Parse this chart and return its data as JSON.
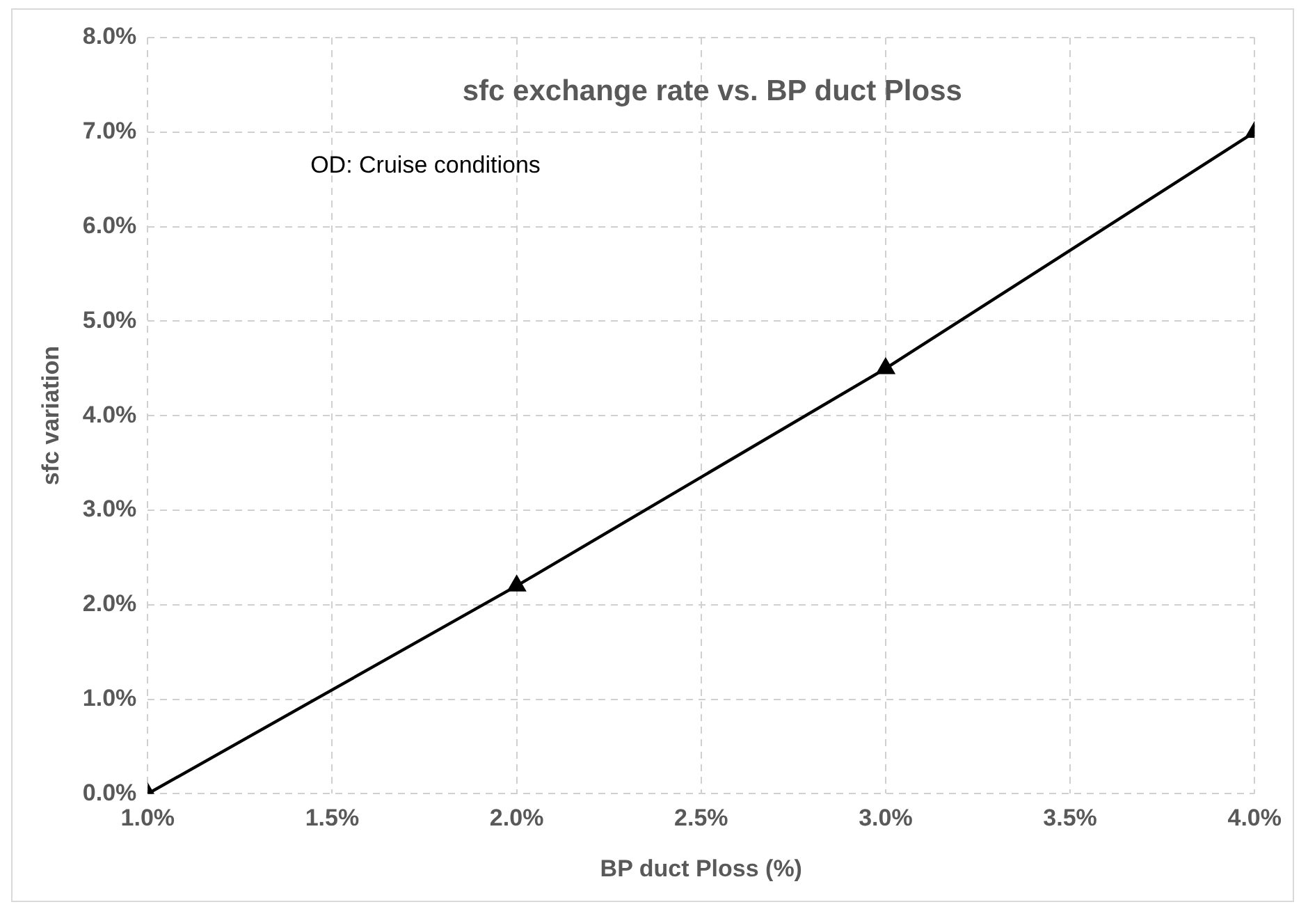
{
  "chart_data": {
    "type": "line",
    "title": "sfc exchange rate vs. BP duct Ploss",
    "xlabel": "BP duct Ploss (%)",
    "ylabel": "sfc variation",
    "annotations": [
      "OD: Cruise conditions"
    ],
    "x": [
      1,
      2,
      3,
      4
    ],
    "series": [
      {
        "color": "#000000",
        "values": [
          0,
          2.2,
          4.5,
          7.0
        ]
      }
    ],
    "xlim": [
      1,
      4
    ],
    "xticks": [
      {
        "value": 1,
        "label": "1.0%"
      },
      {
        "value": 1.5,
        "label": "1.5%"
      },
      {
        "value": 2,
        "label": "2.0%"
      },
      {
        "value": 2.5,
        "label": "2.5%"
      },
      {
        "value": 3,
        "label": "3.0%"
      },
      {
        "value": 3.5,
        "label": "3.5%"
      },
      {
        "value": 4,
        "label": "4.0%"
      }
    ],
    "ylim": [
      0,
      8
    ],
    "yticks": [
      {
        "value": 0,
        "label": "0.0%"
      },
      {
        "value": 1,
        "label": "1.0%"
      },
      {
        "value": 2,
        "label": "2.0%"
      },
      {
        "value": 3,
        "label": "3.0%"
      },
      {
        "value": 4,
        "label": "4.0%"
      },
      {
        "value": 5,
        "label": "5.0%"
      },
      {
        "value": 6,
        "label": "6.0%"
      },
      {
        "value": 7,
        "label": "7.0%"
      },
      {
        "value": 8,
        "label": "8.0%"
      }
    ],
    "grid": true,
    "legend": false,
    "marker": "triangle",
    "line_style": "solid"
  }
}
